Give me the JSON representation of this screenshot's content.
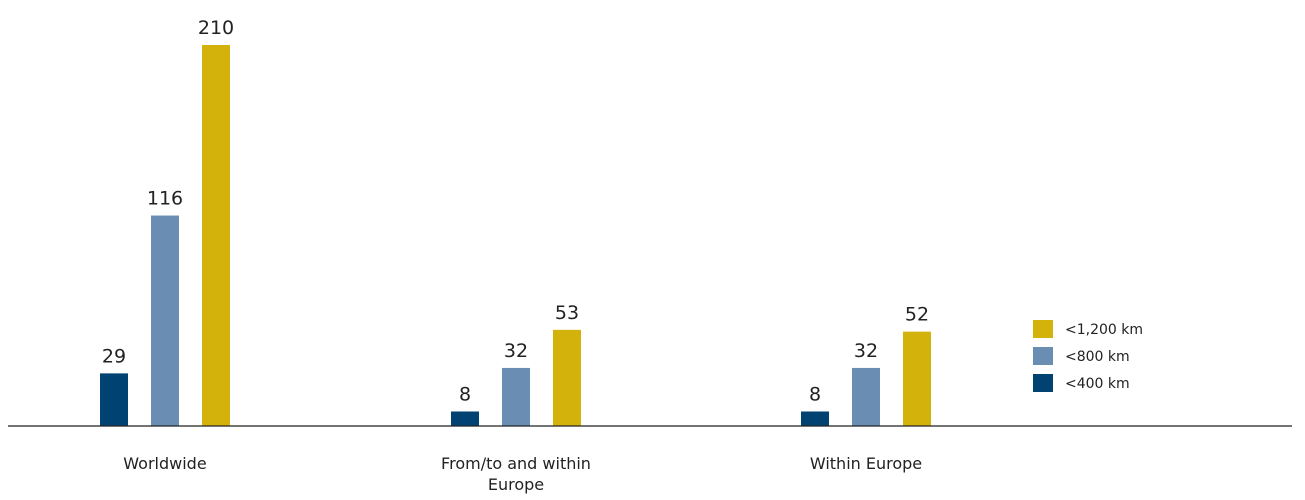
{
  "chart_data": {
    "type": "bar",
    "categories": [
      [
        "Worldwide"
      ],
      [
        "From/to and within",
        "Europe"
      ],
      [
        "Within Europe"
      ]
    ],
    "series": [
      {
        "name": "<400 km",
        "color": "#004272",
        "values": [
          29,
          8,
          8
        ]
      },
      {
        "name": "<800 km",
        "color": "#6a8db3",
        "values": [
          116,
          32,
          32
        ]
      },
      {
        "name": "<1,200 km",
        "color": "#d4b20c",
        "values": [
          210,
          53,
          52
        ]
      }
    ],
    "legend_order": [
      "<1,200 km",
      "<800 km",
      "<400 km"
    ],
    "legend_position": "right",
    "title": "",
    "xlabel": "",
    "ylabel": "",
    "ylim": [
      0,
      210
    ],
    "grid": false
  }
}
